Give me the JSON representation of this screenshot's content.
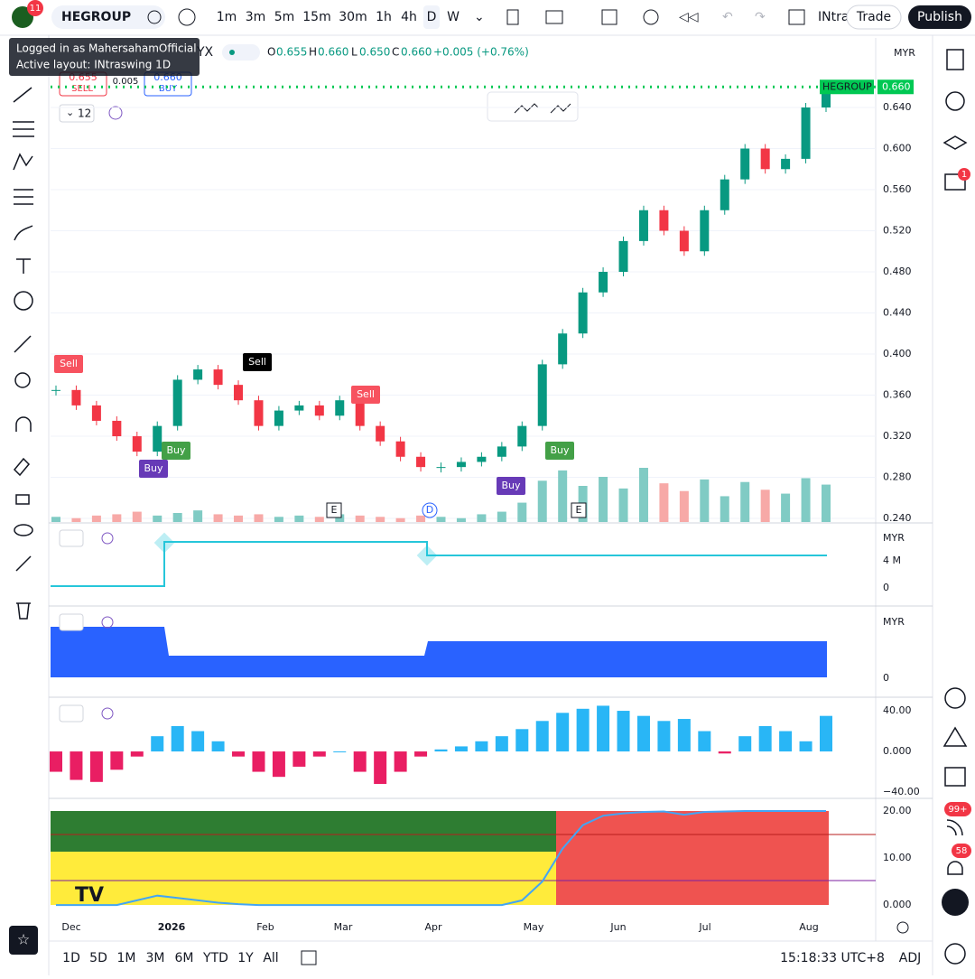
{
  "toolbar": {
    "badge": "11",
    "symbol": "HEGROUP",
    "intervals": [
      "1m",
      "3m",
      "5m",
      "15m",
      "30m",
      "1h",
      "4h",
      "D",
      "W"
    ],
    "layout": "INtra",
    "trade": "Trade",
    "publish": "Publish"
  },
  "tooltip": {
    "line1": "Logged in as MahersahamOfficial",
    "line2": "Active layout: INtraswing 1D"
  },
  "legend": {
    "symbol_tail": "YX",
    "o_label": "O",
    "o": "0.655",
    "h_label": "H",
    "h": "0.660",
    "l_label": "L",
    "l": "0.650",
    "c_label": "C",
    "c": "0.660",
    "change": "+0.005 (+0.76%)"
  },
  "trade_box": {
    "sell_price": "0.655",
    "sell": "SELL",
    "spread": "0.005",
    "buy_price": "0.660",
    "buy": "BUY"
  },
  "indicator_count": "12",
  "chart_data": {
    "type": "candlestick",
    "currency": "MYR",
    "closes": [
      0.365,
      0.35,
      0.335,
      0.32,
      0.305,
      0.33,
      0.375,
      0.385,
      0.37,
      0.355,
      0.33,
      0.345,
      0.35,
      0.34,
      0.355,
      0.33,
      0.315,
      0.3,
      0.29,
      0.29,
      0.295,
      0.3,
      0.31,
      0.33,
      0.39,
      0.42,
      0.46,
      0.48,
      0.51,
      0.54,
      0.52,
      0.5,
      0.54,
      0.57,
      0.6,
      0.58,
      0.59,
      0.64,
      0.66
    ],
    "volumes": [
      0.4,
      0.3,
      0.5,
      0.6,
      0.8,
      0.5,
      0.7,
      0.9,
      0.6,
      0.5,
      0.6,
      0.4,
      0.5,
      0.4,
      0.6,
      0.5,
      0.4,
      0.3,
      0.5,
      0.4,
      0.3,
      0.6,
      0.8,
      1.5,
      3.2,
      4.0,
      2.8,
      3.5,
      2.6,
      4.2,
      3.0,
      2.4,
      3.3,
      2.0,
      3.1,
      2.5,
      2.2,
      3.4,
      2.9
    ],
    "ylim": [
      0.2365,
      0.7077
    ],
    "yticks": [
      {
        "value": 0.64,
        "label": "0.640"
      },
      {
        "value": 0.6,
        "label": "0.600"
      },
      {
        "value": 0.56,
        "label": "0.560"
      },
      {
        "value": 0.52,
        "label": "0.520"
      },
      {
        "value": 0.48,
        "label": "0.480"
      },
      {
        "value": 0.44,
        "label": "0.440"
      },
      {
        "value": 0.4,
        "label": "0.400"
      },
      {
        "value": 0.36,
        "label": "0.360"
      },
      {
        "value": 0.32,
        "label": "0.320"
      },
      {
        "value": 0.28,
        "label": "0.280"
      },
      {
        "value": 0.24,
        "label": "0.240"
      }
    ],
    "last_symbol": "HEGROUP",
    "last_label": "0.660",
    "xlabels": [
      "Dec",
      "2026",
      "Feb",
      "Mar",
      "Apr",
      "May",
      "Jun",
      "Jul",
      "Aug"
    ],
    "signals": [
      "Sell",
      "Sell",
      "Sell",
      "Buy",
      "Buy",
      "Buy",
      "Buy"
    ],
    "events": [
      "E",
      "D",
      "E"
    ]
  },
  "panes": [
    {
      "currency": "MYR",
      "yticks": [
        {
          "value": 4000000,
          "label": "4 M"
        },
        0
      ]
    },
    {
      "currency": "MYR",
      "yticks": [
        0
      ]
    },
    {
      "type": "bar",
      "ylim": [
        -44.4,
        51.6
      ],
      "yticks": [
        {
          "value": 40,
          "label": "40.00"
        },
        {
          "value": 0,
          "label": "0.000"
        },
        {
          "value": -40,
          "label": "−40.00"
        }
      ],
      "values": [
        -20,
        -28,
        -30,
        -18,
        -5,
        15,
        25,
        20,
        10,
        -5,
        -20,
        -25,
        -15,
        -5,
        0,
        -20,
        -32,
        -20,
        -5,
        2,
        5,
        10,
        15,
        22,
        30,
        38,
        42,
        45,
        40,
        35,
        30,
        32,
        20,
        -2,
        15,
        25,
        20,
        10,
        35
      ]
    },
    {
      "type": "line",
      "ylim": [
        -1.9,
        22.3
      ],
      "yticks": [
        {
          "value": 20,
          "label": "20.00"
        },
        {
          "value": 10,
          "label": "10.00"
        },
        {
          "value": 0,
          "label": "0.000"
        }
      ],
      "values": [
        0,
        0,
        0,
        0,
        1,
        2,
        1.5,
        1,
        0.5,
        0.2,
        0,
        0,
        0,
        0,
        0,
        0,
        0,
        0,
        0,
        0,
        0,
        0,
        0,
        1,
        5,
        12,
        17,
        19,
        19.5,
        19.8,
        19.9,
        19.2,
        19.8,
        19.9,
        20,
        20,
        20,
        20,
        20
      ]
    }
  ],
  "range_bar": [
    "1D",
    "5D",
    "1M",
    "3M",
    "6M",
    "YTD",
    "1Y",
    "All"
  ],
  "clock": "15:18:33 UTC+8",
  "adj": "ADJ",
  "sidebar_badges": [
    "1",
    "99+",
    "58"
  ]
}
